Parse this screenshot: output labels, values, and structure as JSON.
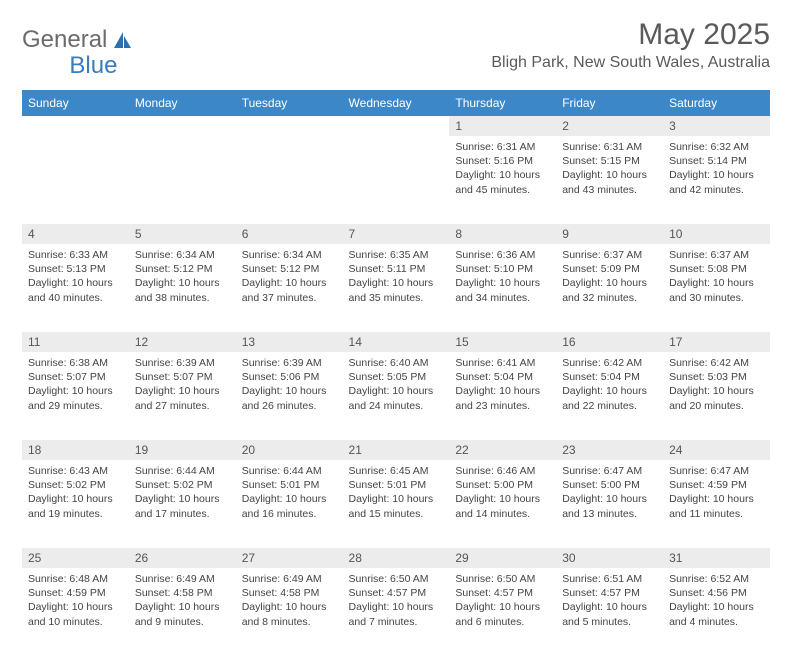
{
  "brand": {
    "part1": "General",
    "part2": "Blue"
  },
  "title": "May 2025",
  "location": "Bligh Park, New South Wales, Australia",
  "colors": {
    "header_bg": "#3b87c8",
    "header_text": "#ffffff",
    "daynum_bg": "#ececec",
    "text": "#444444",
    "brand_blue": "#3b7bbf"
  },
  "weekdays": [
    "Sunday",
    "Monday",
    "Tuesday",
    "Wednesday",
    "Thursday",
    "Friday",
    "Saturday"
  ],
  "weeks": [
    [
      null,
      null,
      null,
      null,
      {
        "n": "1",
        "sr": "6:31 AM",
        "ss": "5:16 PM",
        "dl": "10 hours and 45 minutes."
      },
      {
        "n": "2",
        "sr": "6:31 AM",
        "ss": "5:15 PM",
        "dl": "10 hours and 43 minutes."
      },
      {
        "n": "3",
        "sr": "6:32 AM",
        "ss": "5:14 PM",
        "dl": "10 hours and 42 minutes."
      }
    ],
    [
      {
        "n": "4",
        "sr": "6:33 AM",
        "ss": "5:13 PM",
        "dl": "10 hours and 40 minutes."
      },
      {
        "n": "5",
        "sr": "6:34 AM",
        "ss": "5:12 PM",
        "dl": "10 hours and 38 minutes."
      },
      {
        "n": "6",
        "sr": "6:34 AM",
        "ss": "5:12 PM",
        "dl": "10 hours and 37 minutes."
      },
      {
        "n": "7",
        "sr": "6:35 AM",
        "ss": "5:11 PM",
        "dl": "10 hours and 35 minutes."
      },
      {
        "n": "8",
        "sr": "6:36 AM",
        "ss": "5:10 PM",
        "dl": "10 hours and 34 minutes."
      },
      {
        "n": "9",
        "sr": "6:37 AM",
        "ss": "5:09 PM",
        "dl": "10 hours and 32 minutes."
      },
      {
        "n": "10",
        "sr": "6:37 AM",
        "ss": "5:08 PM",
        "dl": "10 hours and 30 minutes."
      }
    ],
    [
      {
        "n": "11",
        "sr": "6:38 AM",
        "ss": "5:07 PM",
        "dl": "10 hours and 29 minutes."
      },
      {
        "n": "12",
        "sr": "6:39 AM",
        "ss": "5:07 PM",
        "dl": "10 hours and 27 minutes."
      },
      {
        "n": "13",
        "sr": "6:39 AM",
        "ss": "5:06 PM",
        "dl": "10 hours and 26 minutes."
      },
      {
        "n": "14",
        "sr": "6:40 AM",
        "ss": "5:05 PM",
        "dl": "10 hours and 24 minutes."
      },
      {
        "n": "15",
        "sr": "6:41 AM",
        "ss": "5:04 PM",
        "dl": "10 hours and 23 minutes."
      },
      {
        "n": "16",
        "sr": "6:42 AM",
        "ss": "5:04 PM",
        "dl": "10 hours and 22 minutes."
      },
      {
        "n": "17",
        "sr": "6:42 AM",
        "ss": "5:03 PM",
        "dl": "10 hours and 20 minutes."
      }
    ],
    [
      {
        "n": "18",
        "sr": "6:43 AM",
        "ss": "5:02 PM",
        "dl": "10 hours and 19 minutes."
      },
      {
        "n": "19",
        "sr": "6:44 AM",
        "ss": "5:02 PM",
        "dl": "10 hours and 17 minutes."
      },
      {
        "n": "20",
        "sr": "6:44 AM",
        "ss": "5:01 PM",
        "dl": "10 hours and 16 minutes."
      },
      {
        "n": "21",
        "sr": "6:45 AM",
        "ss": "5:01 PM",
        "dl": "10 hours and 15 minutes."
      },
      {
        "n": "22",
        "sr": "6:46 AM",
        "ss": "5:00 PM",
        "dl": "10 hours and 14 minutes."
      },
      {
        "n": "23",
        "sr": "6:47 AM",
        "ss": "5:00 PM",
        "dl": "10 hours and 13 minutes."
      },
      {
        "n": "24",
        "sr": "6:47 AM",
        "ss": "4:59 PM",
        "dl": "10 hours and 11 minutes."
      }
    ],
    [
      {
        "n": "25",
        "sr": "6:48 AM",
        "ss": "4:59 PM",
        "dl": "10 hours and 10 minutes."
      },
      {
        "n": "26",
        "sr": "6:49 AM",
        "ss": "4:58 PM",
        "dl": "10 hours and 9 minutes."
      },
      {
        "n": "27",
        "sr": "6:49 AM",
        "ss": "4:58 PM",
        "dl": "10 hours and 8 minutes."
      },
      {
        "n": "28",
        "sr": "6:50 AM",
        "ss": "4:57 PM",
        "dl": "10 hours and 7 minutes."
      },
      {
        "n": "29",
        "sr": "6:50 AM",
        "ss": "4:57 PM",
        "dl": "10 hours and 6 minutes."
      },
      {
        "n": "30",
        "sr": "6:51 AM",
        "ss": "4:57 PM",
        "dl": "10 hours and 5 minutes."
      },
      {
        "n": "31",
        "sr": "6:52 AM",
        "ss": "4:56 PM",
        "dl": "10 hours and 4 minutes."
      }
    ]
  ],
  "labels": {
    "sunrise": "Sunrise:",
    "sunset": "Sunset:",
    "daylight": "Daylight:"
  }
}
